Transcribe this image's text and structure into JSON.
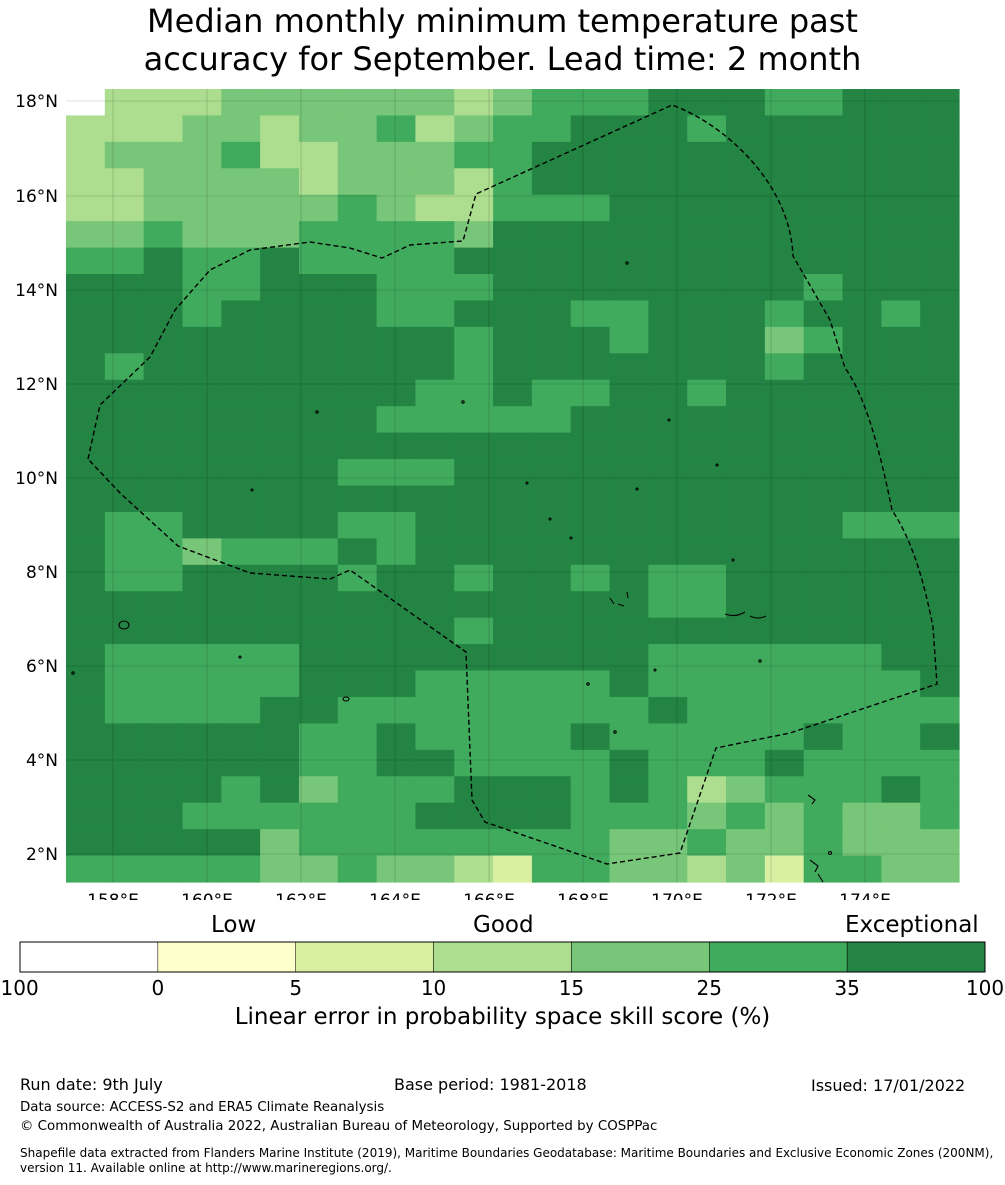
{
  "title": {
    "line1": "Median monthly minimum temperature past",
    "line2": "accuracy for September. Lead time: 2 month"
  },
  "map": {
    "lon_ticks": [
      "158°E",
      "160°E",
      "162°E",
      "164°E",
      "166°E",
      "168°E",
      "170°E",
      "172°E",
      "174°E"
    ],
    "lat_ticks": [
      "18°N",
      "16°N",
      "14°N",
      "12°N",
      "10°N",
      "8°N",
      "6°N",
      "4°N",
      "2°N"
    ],
    "overlay": "dashed maritime boundary (EEZ outline) with island coastlines"
  },
  "colorbar": {
    "category_low": "Low",
    "category_good": "Good",
    "category_exceptional": "Exceptional",
    "tick_labels": [
      "-100",
      "0",
      "5",
      "10",
      "15",
      "25",
      "35",
      "100"
    ],
    "bins": [
      {
        "range": "-100 to 0",
        "color": "#ffffff"
      },
      {
        "range": "0 to 5",
        "color": "#ffffcc"
      },
      {
        "range": "5 to 10",
        "color": "#d9f0a3"
      },
      {
        "range": "10 to 15",
        "color": "#addd8e"
      },
      {
        "range": "15 to 25",
        "color": "#78c679"
      },
      {
        "range": "25 to 35",
        "color": "#41ab5d"
      },
      {
        "range": "35 to 100",
        "color": "#238443"
      }
    ],
    "label": "Linear error in probability space skill score (%)"
  },
  "footer": {
    "run_date": "Run date: 9th July",
    "base_period": "Base period: 1981-2018",
    "issued": "Issued: 17/01/2022",
    "data_source": "Data source: ACCESS-S2 and ERA5 Climate Reanalysis",
    "copyright": "© Commonwealth of Australia 2022, Australian Bureau of Meteorology, Supported by COSPPac",
    "shapefile_line1": "Shapefile data extracted from Flanders Marine Institute (2019), Maritime Boundaries Geodatabase: Maritime Boundaries and Exclusive Economic Zones (200NM),",
    "shapefile_line2": "version 11. Available online at http://www.marineregions.org/."
  }
}
